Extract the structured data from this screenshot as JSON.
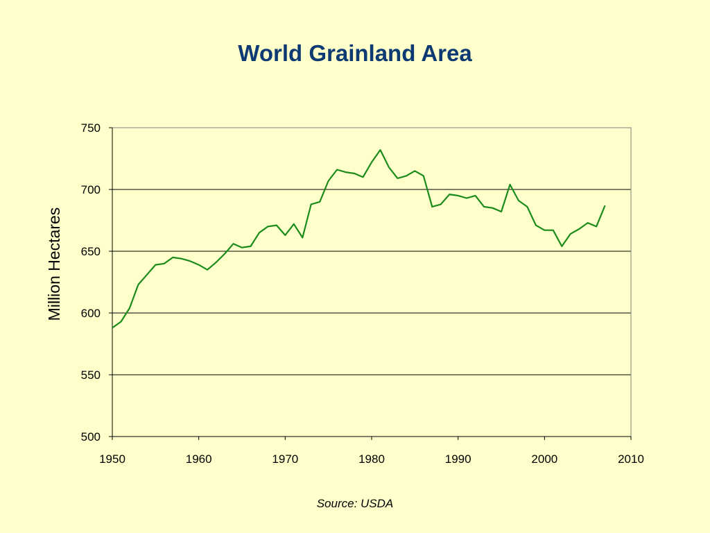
{
  "colors": {
    "background": "#ffffcc",
    "title": "#0d3a73",
    "series_line": "#1a8a1a",
    "gridline": "#000000",
    "plot_border": "#808080"
  },
  "chart_data": {
    "type": "line",
    "title": "World Grainland Area",
    "xlabel": "",
    "ylabel": "Million Hectares",
    "source": "Source: USDA",
    "xlim": [
      1950,
      2010
    ],
    "ylim": [
      500,
      750
    ],
    "x_ticks": [
      1950,
      1960,
      1970,
      1980,
      1990,
      2000,
      2010
    ],
    "y_ticks": [
      500,
      550,
      600,
      650,
      700,
      750
    ],
    "grid": "horizontal",
    "legend": "none",
    "series": [
      {
        "x": [
          1950,
          1951,
          1952,
          1953,
          1954,
          1955,
          1956,
          1957,
          1958,
          1959,
          1960,
          1961,
          1962,
          1963,
          1964,
          1965,
          1966,
          1967,
          1968,
          1969,
          1970,
          1971,
          1972,
          1973,
          1974,
          1975,
          1976,
          1977,
          1978,
          1979,
          1980,
          1981,
          1982,
          1983,
          1984,
          1985,
          1986,
          1987,
          1988,
          1989,
          1990,
          1991,
          1992,
          1993,
          1994,
          1995,
          1996,
          1997,
          1998,
          1999,
          2000,
          2001,
          2002,
          2003,
          2004,
          2005,
          2006,
          2007
        ],
        "values": [
          588,
          593,
          604,
          623,
          631,
          639,
          640,
          645,
          644,
          642,
          639,
          635,
          641,
          648,
          656,
          653,
          654,
          665,
          670,
          671,
          663,
          672,
          661,
          688,
          690,
          707,
          716,
          714,
          713,
          710,
          722,
          732,
          718,
          709,
          711,
          715,
          711,
          686,
          688,
          696,
          695,
          693,
          695,
          686,
          685,
          682,
          704,
          691,
          686,
          671,
          667,
          667,
          654,
          664,
          668,
          673,
          670,
          687
        ]
      }
    ]
  }
}
